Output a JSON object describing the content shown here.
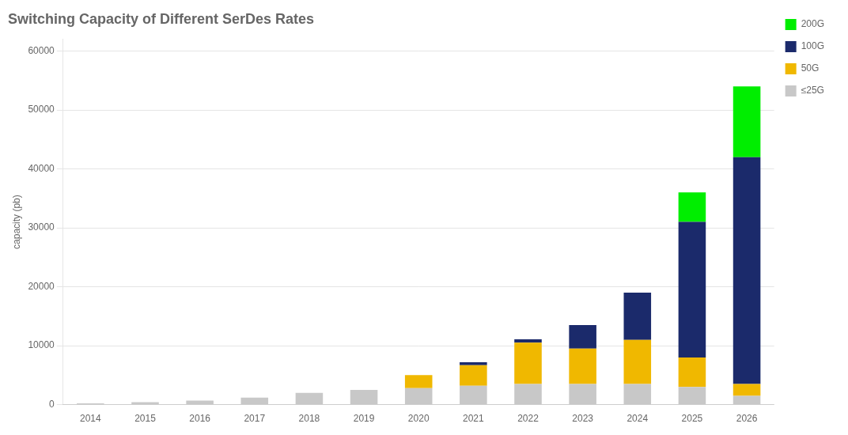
{
  "chart_data": {
    "type": "bar",
    "stacked": true,
    "title": "Switching Capacity of Different SerDes Rates",
    "ylabel": "capacity (pb)",
    "categories": [
      "2014",
      "2015",
      "2016",
      "2017",
      "2018",
      "2019",
      "2020",
      "2021",
      "2022",
      "2023",
      "2024",
      "2025",
      "2026"
    ],
    "series": [
      {
        "name": "≤25G",
        "color": "#c8c8c8",
        "values": [
          200,
          400,
          700,
          1200,
          2000,
          2500,
          2800,
          3200,
          3500,
          3500,
          3500,
          3000,
          1500
        ]
      },
      {
        "name": "50G",
        "color": "#f0b800",
        "values": [
          0,
          0,
          0,
          0,
          0,
          0,
          2200,
          3500,
          7000,
          6000,
          7500,
          5000,
          2000
        ]
      },
      {
        "name": "100G",
        "color": "#1b2a6b",
        "values": [
          0,
          0,
          0,
          0,
          0,
          0,
          0,
          500,
          600,
          4000,
          8000,
          23000,
          38500
        ]
      },
      {
        "name": "200G",
        "color": "#00ee00",
        "values": [
          0,
          0,
          0,
          0,
          0,
          0,
          0,
          0,
          0,
          0,
          0,
          5000,
          12000
        ]
      }
    ],
    "ylim": [
      0,
      62000
    ],
    "yticks": [
      0,
      10000,
      20000,
      30000,
      40000,
      50000,
      60000
    ],
    "grid": true,
    "legend": "right"
  }
}
